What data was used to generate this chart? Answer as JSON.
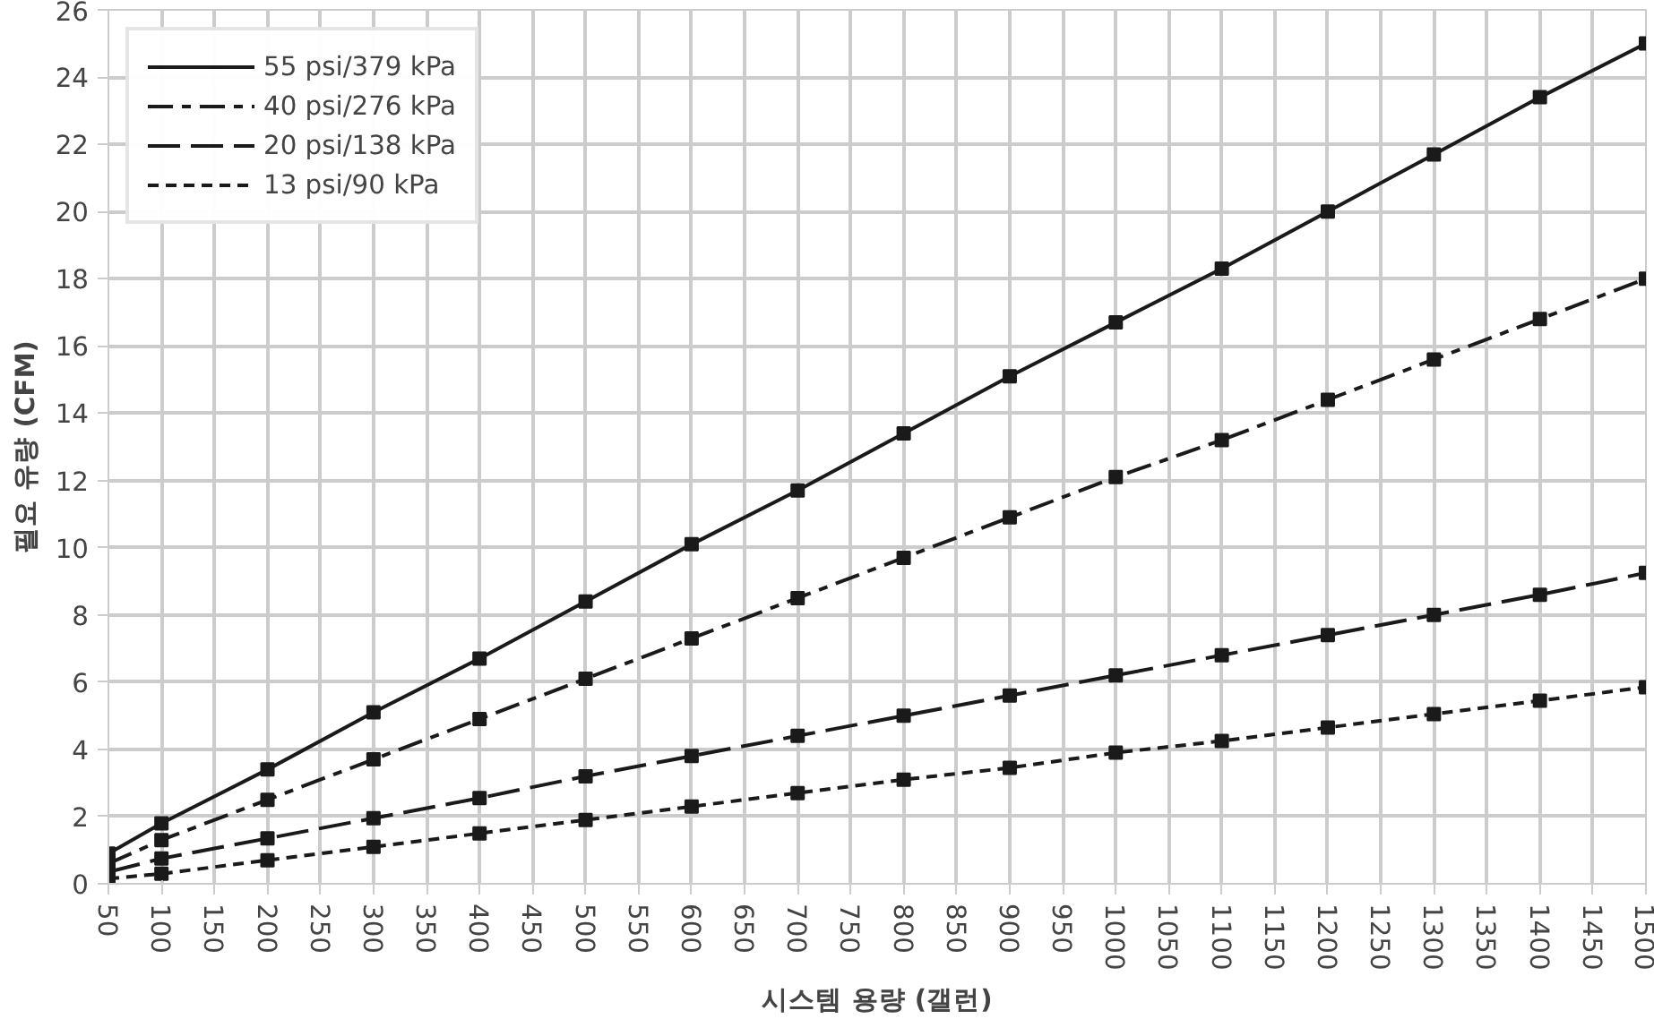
{
  "chart_data": {
    "type": "line",
    "xlabel": "시스템 용량 (갤런)",
    "ylabel": "필요 유량 (CFM)",
    "x": [
      50,
      100,
      200,
      300,
      400,
      500,
      600,
      700,
      800,
      900,
      1000,
      1100,
      1200,
      1300,
      1400,
      1500
    ],
    "xlim": [
      50,
      1500
    ],
    "xticks": [
      50,
      100,
      150,
      200,
      250,
      300,
      350,
      400,
      450,
      500,
      550,
      600,
      650,
      700,
      750,
      800,
      850,
      900,
      950,
      1000,
      1050,
      1100,
      1150,
      1200,
      1250,
      1300,
      1350,
      1400,
      1450,
      1500
    ],
    "ylim": [
      0,
      26
    ],
    "yticks": [
      0,
      2,
      4,
      6,
      8,
      10,
      12,
      14,
      16,
      18,
      20,
      22,
      24,
      26
    ],
    "grid": true,
    "legend": "top left",
    "marker": "square",
    "series": [
      {
        "name": "55 psi/379 kPa",
        "color": "#1a1a1a",
        "line_style": "solid",
        "values": [
          0.9,
          1.8,
          3.4,
          5.1,
          6.7,
          8.4,
          10.1,
          11.7,
          13.4,
          15.1,
          16.7,
          18.3,
          20.0,
          21.7,
          23.4,
          25.0
        ]
      },
      {
        "name": "40 psi/276 kPa",
        "color": "#1a1a1a",
        "line_style": "dashdot",
        "values": [
          0.6,
          1.3,
          2.5,
          3.7,
          4.9,
          6.1,
          7.3,
          8.5,
          9.7,
          10.9,
          12.1,
          13.2,
          14.4,
          15.6,
          16.8,
          18.0
        ]
      },
      {
        "name": "20 psi/138 kPa",
        "color": "#1a1a1a",
        "line_style": "dashed",
        "values": [
          0.35,
          0.75,
          1.35,
          1.95,
          2.55,
          3.2,
          3.8,
          4.4,
          5.0,
          5.6,
          6.2,
          6.8,
          7.4,
          8.0,
          8.6,
          9.25
        ]
      },
      {
        "name": "13 psi/90 kPa",
        "color": "#1a1a1a",
        "line_style": "dotted",
        "values": [
          0.15,
          0.3,
          0.7,
          1.1,
          1.5,
          1.9,
          2.3,
          2.7,
          3.1,
          3.45,
          3.9,
          4.25,
          4.65,
          5.05,
          5.45,
          5.85
        ]
      }
    ]
  }
}
